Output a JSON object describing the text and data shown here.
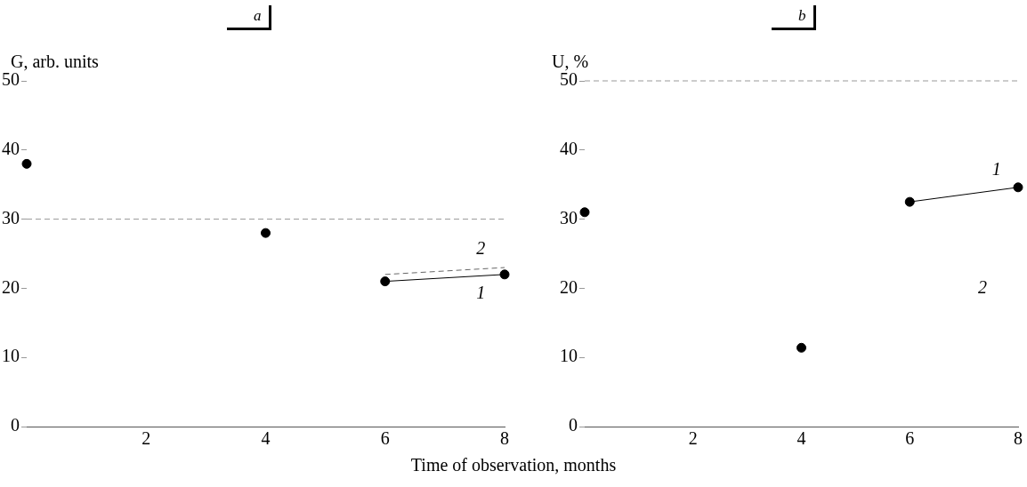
{
  "chart_data": [
    {
      "type": "scatter",
      "title": "a",
      "xlabel": "Time of observation, months",
      "ylabel": "G, arb. units",
      "xlim": [
        0,
        8
      ],
      "xticks": [
        2,
        4,
        6,
        8
      ],
      "ylim": [
        0,
        50
      ],
      "yticks": [
        0,
        10,
        20,
        30,
        40,
        50
      ],
      "grid": false,
      "legend": false,
      "series": [
        {
          "type": "scatter",
          "x": [
            0,
            4
          ],
          "values": [
            38,
            28
          ],
          "color": "#000000",
          "marker": "circle"
        },
        {
          "type": "line",
          "name": "1",
          "x": [
            6,
            8
          ],
          "values": [
            21,
            22
          ],
          "color": "#000000",
          "marker": "circle",
          "line_style": "solid"
        },
        {
          "type": "line",
          "name": "2",
          "x": [
            6,
            8
          ],
          "values": [
            22,
            23
          ],
          "color": "#666666",
          "marker": "none",
          "line_style": "dashed"
        }
      ],
      "ref_lines": [
        {
          "axis": "y",
          "value": 30,
          "color": "#999999",
          "line_style": "dashed"
        }
      ]
    },
    {
      "type": "scatter",
      "title": "b",
      "ylabel": "U, %",
      "xlim": [
        0,
        8
      ],
      "xticks": [
        2,
        4,
        6,
        8
      ],
      "ylim": [
        0,
        50
      ],
      "yticks": [
        0,
        10,
        20,
        30,
        40,
        50
      ],
      "grid": false,
      "legend": false,
      "series": [
        {
          "type": "scatter",
          "x": [
            0,
            4
          ],
          "values": [
            31,
            11.4
          ],
          "color": "#000000",
          "marker": "circle"
        },
        {
          "type": "line",
          "name": "1",
          "x": [
            6,
            8
          ],
          "values": [
            32.5,
            34.6
          ],
          "color": "#000000",
          "marker": "circle",
          "line_style": "solid"
        }
      ],
      "ref_lines": [
        {
          "axis": "y",
          "value": 50,
          "color": "#999999",
          "line_style": "dashed"
        }
      ],
      "annotations": [
        "2"
      ]
    }
  ]
}
